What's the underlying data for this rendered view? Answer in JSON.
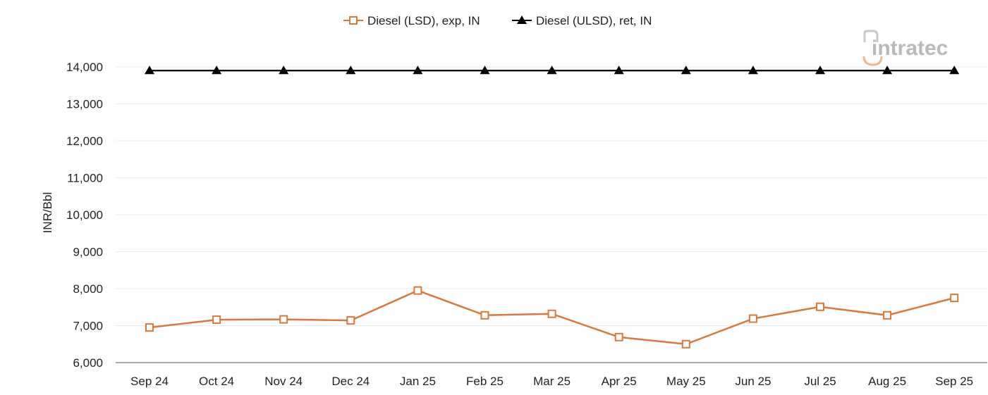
{
  "logo": {
    "text": "intratec"
  },
  "chart_data": {
    "type": "line",
    "title": "",
    "xlabel": "",
    "ylabel": "INR/Bbl",
    "ylim": [
      6000,
      14000
    ],
    "yticks": [
      6000,
      7000,
      8000,
      9000,
      10000,
      11000,
      12000,
      13000,
      14000
    ],
    "ytick_labels": [
      "6,000",
      "7,000",
      "8,000",
      "9,000",
      "10,000",
      "11,000",
      "12,000",
      "13,000",
      "14,000"
    ],
    "grid": true,
    "legend_position": "top-center",
    "categories": [
      "Sep 24",
      "Oct 24",
      "Nov 24",
      "Dec 24",
      "Jan 25",
      "Feb 25",
      "Mar 25",
      "Apr 25",
      "May 25",
      "Jun 25",
      "Jul 25",
      "Aug 25",
      "Sep 25"
    ],
    "series": [
      {
        "name": "Diesel (LSD), exp, IN",
        "color": "#d9783b",
        "marker": "open-square",
        "values": [
          6950,
          7160,
          7170,
          7140,
          7950,
          7280,
          7320,
          6690,
          6500,
          7190,
          7510,
          7280,
          7750
        ]
      },
      {
        "name": "Diesel (ULSD), ret, IN",
        "color": "#000000",
        "marker": "filled-triangle",
        "values": [
          13900,
          13900,
          13900,
          13900,
          13900,
          13900,
          13900,
          13900,
          13900,
          13900,
          13900,
          13900,
          13900
        ]
      }
    ]
  }
}
